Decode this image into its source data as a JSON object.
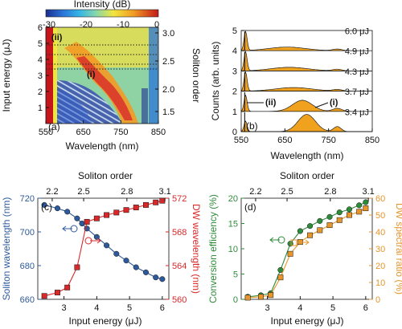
{
  "chart_data": [
    {
      "type": "heatmap",
      "panel_label": "(a)",
      "colorbar_label": "Intensity (dB)",
      "colorbar_ticks": [
        "-30",
        "-20",
        "-10",
        "0"
      ],
      "colorbar_range": [
        -30,
        0
      ],
      "xlabel": "Wavelength (nm)",
      "xticks": [
        550,
        650,
        750,
        850
      ],
      "xlim": [
        550,
        850
      ],
      "ylabel": "Input energy (μJ)",
      "yticks": [
        1,
        2,
        3,
        4,
        5,
        6
      ],
      "ylim": [
        0,
        6
      ],
      "y2label": "Soliton order",
      "y2ticks": [
        "1.5",
        "2.0",
        "2.5",
        "3.0"
      ],
      "annotations": [
        "(i)",
        "(ii)"
      ],
      "ridge": [
        {
          "energy": 3.4,
          "wavelength": 735
        },
        {
          "energy": 3.7,
          "wavelength": 710
        },
        {
          "energy": 4.3,
          "wavelength": 680
        },
        {
          "energy": 4.9,
          "wavelength": 662
        },
        {
          "energy": 6.0,
          "wavelength": 655
        }
      ],
      "dotted_lines_energy": [
        3.4,
        3.7,
        4.3,
        4.9
      ]
    },
    {
      "type": "area",
      "panel_label": "(b)",
      "xlabel": "Wavelength (nm)",
      "xticks": [
        550,
        650,
        750,
        850
      ],
      "xlim": [
        550,
        850
      ],
      "ylabel": "Counts (arb. units)",
      "yticks": [
        0,
        1,
        2,
        3,
        4,
        5
      ],
      "ylim": [
        0,
        5
      ],
      "annotations": [
        "(i)",
        "(ii)"
      ],
      "series": [
        {
          "name": "3.4 μJ",
          "offset": 0,
          "peak_wavelength": 700
        },
        {
          "name": "3.7 μJ",
          "offset": 1,
          "peak_wavelength": 690
        },
        {
          "name": "4.3 μJ",
          "offset": 2,
          "peak_wavelength": 670
        },
        {
          "name": "4.9 μJ",
          "offset": 3,
          "peak_wavelength": 660
        },
        {
          "name": "6.0 μJ",
          "offset": 4,
          "peak_wavelength": 655
        }
      ]
    },
    {
      "type": "line",
      "panel_label": "(c)",
      "xlabel": "Input energy (μJ)",
      "xticks": [
        3,
        4,
        5,
        6
      ],
      "xlim": [
        2.2,
        6.2
      ],
      "x2label": "Soliton order",
      "x2ticks": [
        "2.2",
        "2.5",
        "2.8",
        "3.1"
      ],
      "ylabel": "Soliton wavelength (nm)",
      "yticks": [
        660,
        680,
        700,
        720
      ],
      "ylim": [
        660,
        720
      ],
      "y2label": "DW wavelength (nm)",
      "y2ticks": [
        560,
        564,
        568,
        572
      ],
      "y2lim": [
        560,
        572
      ],
      "series": [
        {
          "name": "Soliton wavelength",
          "color": "#2e5a9c",
          "marker": "circle",
          "x": [
            2.4,
            2.8,
            3.1,
            3.4,
            3.55,
            3.7,
            4.0,
            4.3,
            4.6,
            4.9,
            5.2,
            5.5,
            5.8,
            6.0
          ],
          "y": [
            716,
            714,
            712,
            708,
            705,
            702,
            697,
            692,
            687,
            683,
            679,
            676,
            673,
            672
          ]
        },
        {
          "name": "DW wavelength",
          "color": "#d8282a",
          "marker": "square",
          "x": [
            2.4,
            2.8,
            3.1,
            3.4,
            3.7,
            4.0,
            4.3,
            4.6,
            4.9,
            5.2,
            5.5,
            5.8,
            6.0
          ],
          "y": [
            560.4,
            560.8,
            561.4,
            563.8,
            569.2,
            569.6,
            570.0,
            570.3,
            570.6,
            570.9,
            571.2,
            571.5,
            571.7
          ]
        }
      ]
    },
    {
      "type": "line",
      "panel_label": "(d)",
      "xlabel": "Input energy (μJ)",
      "xticks": [
        3,
        4,
        5,
        6
      ],
      "xlim": [
        2.2,
        6.2
      ],
      "x2label": "Soliton order",
      "x2ticks": [
        "2.2",
        "2.5",
        "2.8",
        "3.1"
      ],
      "ylabel": "Conversion efficiency (%)",
      "yticks": [
        0,
        5,
        10,
        15,
        20
      ],
      "ylim": [
        0,
        20
      ],
      "y2label": "DW spectral ratio (%)",
      "y2ticks": [
        0,
        10,
        20,
        30,
        40,
        50,
        60
      ],
      "y2lim": [
        0,
        60
      ],
      "series": [
        {
          "name": "Conversion efficiency",
          "color": "#2e8b3a",
          "marker": "circle",
          "x": [
            2.4,
            2.8,
            3.1,
            3.4,
            3.7,
            4.0,
            4.3,
            4.6,
            4.9,
            5.2,
            5.5,
            5.8,
            6.0
          ],
          "y": [
            0.5,
            0.8,
            1.2,
            5.8,
            11.0,
            13.5,
            14.5,
            15.5,
            16.3,
            17.2,
            17.8,
            18.6,
            19.2
          ]
        },
        {
          "name": "DW spectral ratio",
          "color": "#e7962c",
          "marker": "square",
          "x": [
            2.4,
            2.8,
            3.1,
            3.4,
            3.7,
            4.0,
            4.3,
            4.6,
            4.9,
            5.2,
            5.5,
            5.8,
            6.0
          ],
          "y": [
            1.0,
            1.5,
            2.5,
            13.0,
            27.0,
            34.0,
            38.0,
            41.0,
            44.0,
            47.0,
            50.0,
            52.0,
            54.0
          ]
        }
      ]
    }
  ]
}
